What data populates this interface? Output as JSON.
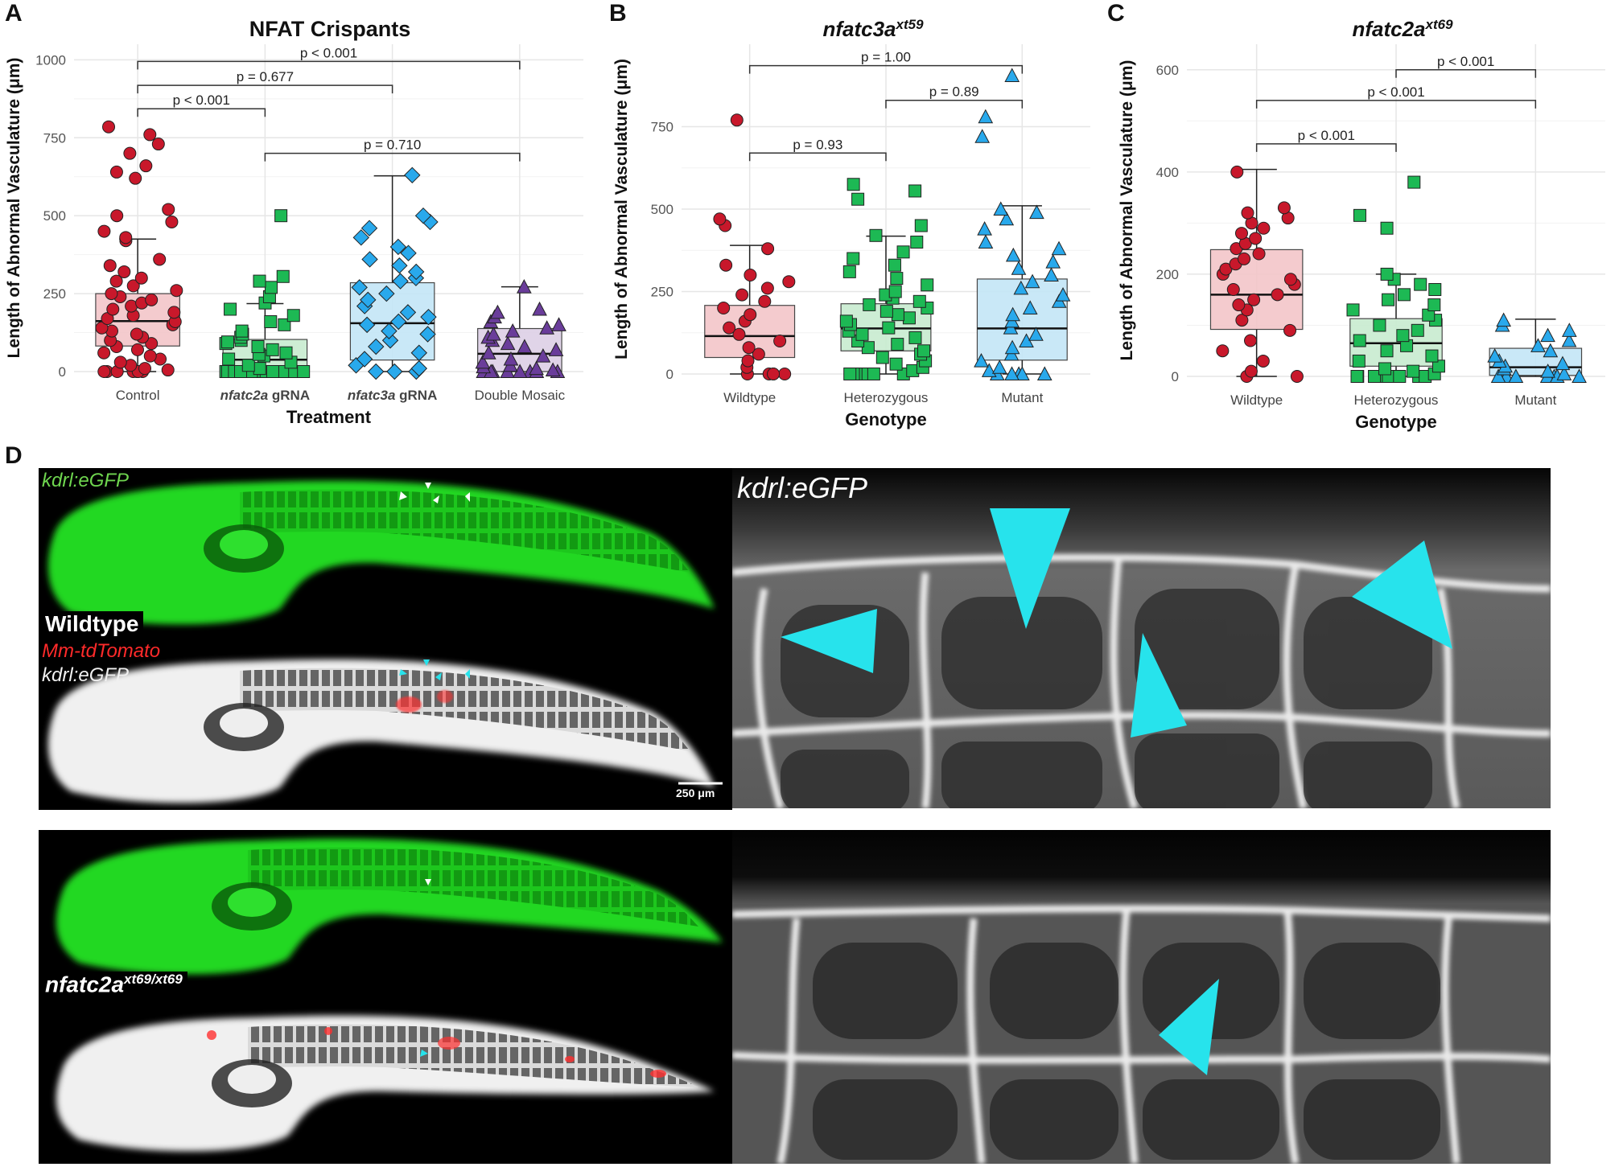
{
  "panels": {
    "a": "A",
    "b": "B",
    "c": "C",
    "d": "D"
  },
  "colors": {
    "red": "#c8182b",
    "green": "#1db954",
    "blue": "#29a9ec",
    "purple": "#6a3d9a",
    "red_box": "#f3c6c9",
    "green_box": "#c8ecd0",
    "blue_box": "#c4e6f7",
    "purple_box": "#ddd0e6",
    "egfp": "#22e022",
    "cyan_arrow": "#27e3ec",
    "tdtomato": "#ff2a2a"
  },
  "chart_data": [
    {
      "type": "box",
      "title": "NFAT Crispants",
      "xlabel": "Treatment",
      "ylabel": "Length of Abnormal Vasculature (μm)",
      "ylim": [
        0,
        1050
      ],
      "yticks": [
        "0",
        "250",
        "500",
        "750",
        "1000"
      ],
      "categories": [
        {
          "pre": "",
          "em": "",
          "post": "Control"
        },
        {
          "pre": "",
          "em": "nfatc2a",
          "post": " gRNA"
        },
        {
          "pre": "",
          "em": "nfatc3a",
          "post": " gRNA"
        },
        {
          "pre": "",
          "em": "",
          "post": "Double Mosaic"
        }
      ],
      "series": [
        {
          "color": "red",
          "marker": "circle",
          "min": 0,
          "q1": 82,
          "median": 162,
          "q3": 250,
          "max": 425,
          "points": [
            0,
            0,
            0,
            0,
            0,
            0,
            0,
            5,
            10,
            20,
            30,
            40,
            50,
            60,
            70,
            80,
            90,
            100,
            110,
            120,
            130,
            140,
            150,
            160,
            170,
            180,
            190,
            200,
            210,
            220,
            230,
            240,
            250,
            260,
            275,
            290,
            300,
            320,
            340,
            360,
            420,
            430,
            450,
            480,
            500,
            520,
            620,
            640,
            660,
            700,
            730,
            760,
            785
          ]
        },
        {
          "color": "green",
          "marker": "square",
          "min": 0,
          "q1": 0,
          "median": 38,
          "q3": 103,
          "max": 218,
          "points": [
            0,
            0,
            0,
            0,
            0,
            0,
            0,
            0,
            0,
            0,
            0,
            0,
            0,
            0,
            0,
            0,
            10,
            20,
            30,
            40,
            50,
            55,
            60,
            70,
            80,
            90,
            95,
            100,
            110,
            120,
            130,
            150,
            160,
            180,
            200,
            220,
            240,
            270,
            290,
            305,
            500
          ]
        },
        {
          "color": "blue",
          "marker": "diamond",
          "min": 0,
          "q1": 37,
          "median": 155,
          "q3": 285,
          "max": 628,
          "points": [
            0,
            0,
            0,
            10,
            20,
            40,
            60,
            80,
            100,
            120,
            130,
            150,
            160,
            175,
            190,
            210,
            230,
            250,
            270,
            290,
            300,
            320,
            340,
            360,
            380,
            400,
            430,
            460,
            480,
            500,
            630
          ]
        },
        {
          "color": "purple",
          "marker": "triangle",
          "min": 0,
          "q1": 0,
          "median": 57,
          "q3": 138,
          "max": 272,
          "points": [
            0,
            0,
            0,
            0,
            0,
            0,
            0,
            0,
            5,
            10,
            15,
            20,
            30,
            40,
            50,
            60,
            70,
            80,
            90,
            100,
            110,
            120,
            130,
            140,
            150,
            160,
            175,
            190,
            200,
            272
          ]
        }
      ],
      "brackets": [
        {
          "from": 0,
          "to": 3,
          "y": 995,
          "label": "p < 0.001"
        },
        {
          "from": 0,
          "to": 2,
          "y": 918,
          "label": "p = 0.677"
        },
        {
          "from": 0,
          "to": 1,
          "y": 843,
          "label": "p < 0.001"
        },
        {
          "from": 1,
          "to": 3,
          "y": 700,
          "label": "p = 0.710"
        }
      ]
    },
    {
      "type": "box",
      "title": "nfatc3a",
      "title_sup": "xt59",
      "xlabel": "Genotype",
      "ylabel": "Length of Abnormal Vasculature (μm)",
      "ylim": [
        0,
        1000
      ],
      "yticks": [
        "0",
        "250",
        "500",
        "750"
      ],
      "categories": [
        {
          "pre": "",
          "em": "",
          "post": "Wildtype"
        },
        {
          "pre": "",
          "em": "",
          "post": "Heterozygous"
        },
        {
          "pre": "",
          "em": "",
          "post": "Mutant"
        }
      ],
      "series": [
        {
          "color": "red",
          "marker": "circle",
          "min": 0,
          "q1": 50,
          "median": 115,
          "q3": 208,
          "max": 390,
          "points": [
            0,
            0,
            0,
            0,
            0,
            20,
            40,
            60,
            80,
            100,
            120,
            140,
            160,
            180,
            200,
            220,
            240,
            260,
            280,
            300,
            330,
            380,
            450,
            470,
            770
          ]
        },
        {
          "color": "green",
          "marker": "square",
          "min": 0,
          "q1": 70,
          "median": 138,
          "q3": 213,
          "max": 418,
          "points": [
            0,
            0,
            0,
            0,
            0,
            0,
            0,
            10,
            20,
            30,
            40,
            50,
            60,
            70,
            80,
            90,
            100,
            110,
            120,
            130,
            140,
            150,
            160,
            170,
            180,
            190,
            200,
            210,
            220,
            230,
            240,
            250,
            270,
            290,
            310,
            330,
            350,
            370,
            400,
            420,
            450,
            530,
            555,
            575
          ]
        },
        {
          "color": "blue",
          "marker": "triangle",
          "min": 0,
          "q1": 42,
          "median": 138,
          "q3": 288,
          "max": 510,
          "points": [
            0,
            0,
            0,
            0,
            0,
            10,
            20,
            40,
            60,
            80,
            100,
            120,
            140,
            160,
            180,
            200,
            220,
            240,
            260,
            280,
            300,
            320,
            340,
            360,
            380,
            400,
            440,
            470,
            490,
            500,
            720,
            780,
            905
          ]
        }
      ],
      "brackets": [
        {
          "from": 0,
          "to": 2,
          "y": 935,
          "label": "p = 1.00"
        },
        {
          "from": 1,
          "to": 2,
          "y": 830,
          "label": "p = 0.89"
        },
        {
          "from": 0,
          "to": 1,
          "y": 670,
          "label": "p = 0.93"
        }
      ]
    },
    {
      "type": "box",
      "title": "nfatc2a",
      "title_sup": "xt69",
      "xlabel": "Genotype",
      "ylabel": "Length of Abnormal Vasculature (μm)",
      "ylim": [
        0,
        650
      ],
      "yticks": [
        "0",
        "200",
        "400",
        "600"
      ],
      "categories": [
        {
          "pre": "",
          "em": "",
          "post": "Wildtype"
        },
        {
          "pre": "",
          "em": "",
          "post": "Heterozygous"
        },
        {
          "pre": "",
          "em": "",
          "post": "Mutant"
        }
      ],
      "series": [
        {
          "color": "red",
          "marker": "circle",
          "min": 0,
          "q1": 92,
          "median": 160,
          "q3": 248,
          "max": 405,
          "points": [
            0,
            0,
            10,
            30,
            50,
            70,
            90,
            110,
            130,
            140,
            150,
            160,
            170,
            180,
            190,
            200,
            210,
            220,
            230,
            240,
            250,
            260,
            270,
            280,
            290,
            300,
            310,
            320,
            330,
            400
          ]
        },
        {
          "color": "green",
          "marker": "square",
          "min": 0,
          "q1": 20,
          "median": 65,
          "q3": 113,
          "max": 200,
          "points": [
            0,
            0,
            0,
            0,
            0,
            0,
            0,
            0,
            0,
            0,
            0,
            5,
            10,
            15,
            20,
            30,
            40,
            50,
            60,
            70,
            80,
            90,
            100,
            110,
            120,
            130,
            140,
            150,
            160,
            170,
            180,
            190,
            200,
            290,
            315,
            380
          ]
        },
        {
          "color": "blue",
          "marker": "triangle",
          "min": 0,
          "q1": 2,
          "median": 18,
          "q3": 55,
          "max": 112,
          "points": [
            0,
            0,
            0,
            0,
            0,
            0,
            0,
            0,
            0,
            5,
            10,
            15,
            20,
            25,
            30,
            40,
            50,
            60,
            70,
            80,
            90,
            100,
            110
          ]
        }
      ],
      "brackets": [
        {
          "from": 1,
          "to": 2,
          "y": 600,
          "label": "p < 0.001"
        },
        {
          "from": 0,
          "to": 2,
          "y": 540,
          "label": "p < 0.001"
        },
        {
          "from": 0,
          "to": 1,
          "y": 455,
          "label": "p < 0.001"
        }
      ]
    }
  ],
  "micrographs": {
    "egfp_label": "kdrl:eGFP",
    "wildtype_label": "Wildtype",
    "tdtomato_label": "Mm-tdTomato",
    "egfp_label_2": "kdrl:eGFP",
    "scale_bar": "250 μm",
    "zoom_label": "kdrl:eGFP",
    "mutant_label_main": "nfatc2a",
    "mutant_label_sup": "xt69/xt69"
  }
}
